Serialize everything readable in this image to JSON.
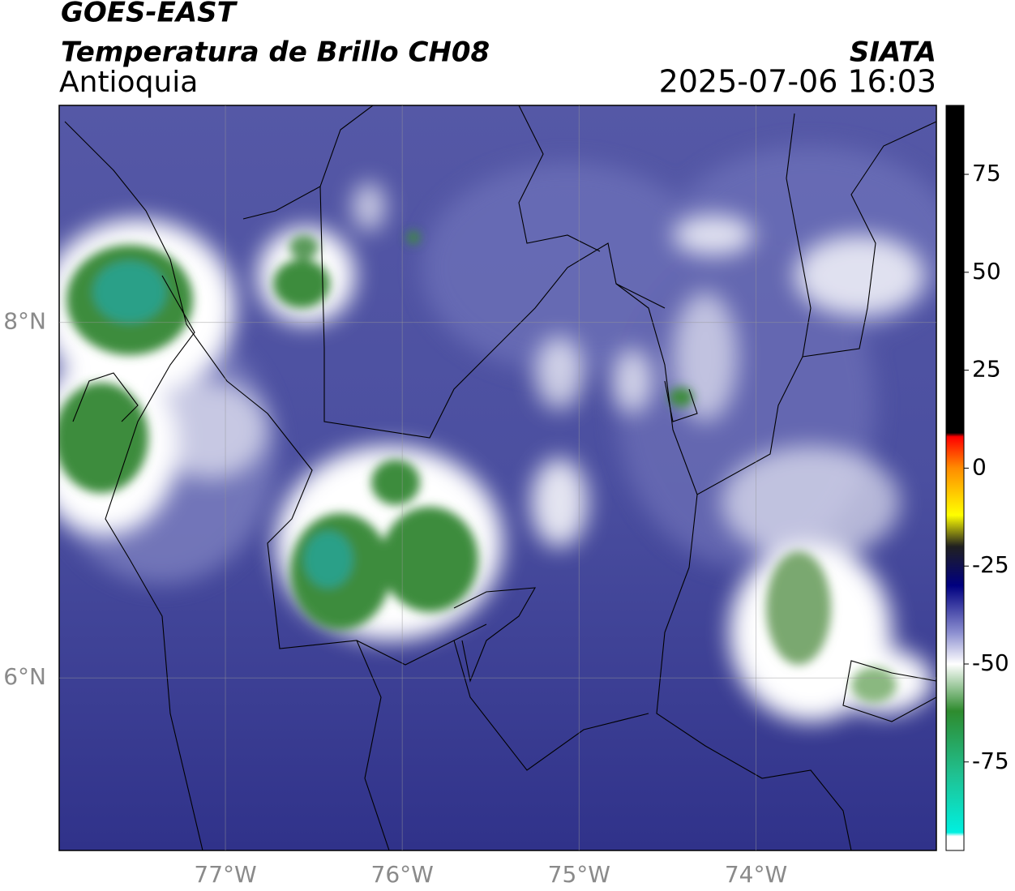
{
  "chart_data": {
    "type": "map",
    "title": "GOES-EAST",
    "subtitle": "Temperatura de Brillo CH08",
    "region": "Antioquia",
    "source": "SIATA",
    "timestamp": "2025-07-06 16:03",
    "xlim": [
      -77.94,
      -72.98
    ],
    "ylim": [
      5.03,
      9.22
    ],
    "xticks": [
      {
        "value": -77,
        "label": "77°W"
      },
      {
        "value": -76,
        "label": "76°W"
      },
      {
        "value": -75,
        "label": "75°W"
      },
      {
        "value": -74,
        "label": "74°W"
      }
    ],
    "yticks": [
      {
        "value": 8,
        "label": "8°N"
      },
      {
        "value": 6,
        "label": "6°N"
      }
    ],
    "grid": true,
    "colorbar": {
      "lim": [
        -97.6,
        92.6
      ],
      "ticks": [
        75,
        50,
        25,
        0,
        -25,
        -50,
        -75
      ],
      "stops": [
        {
          "value": 92.6,
          "color": "#000000"
        },
        {
          "value": 9,
          "color": "#000000"
        },
        {
          "value": 8,
          "color": "#ff0000"
        },
        {
          "value": 0,
          "color": "#ff8c00"
        },
        {
          "value": -12,
          "color": "#ffff00"
        },
        {
          "value": -20,
          "color": "#202020"
        },
        {
          "value": -30,
          "color": "#000080"
        },
        {
          "value": -42,
          "color": "#8c8fd0"
        },
        {
          "value": -50,
          "color": "#ffffff"
        },
        {
          "value": -62,
          "color": "#2e8b2e"
        },
        {
          "value": -78,
          "color": "#20c090"
        },
        {
          "value": -93,
          "color": "#00f0e0"
        },
        {
          "value": -94,
          "color": "#ffffff"
        },
        {
          "value": -97.6,
          "color": "#ffffff"
        }
      ]
    }
  }
}
